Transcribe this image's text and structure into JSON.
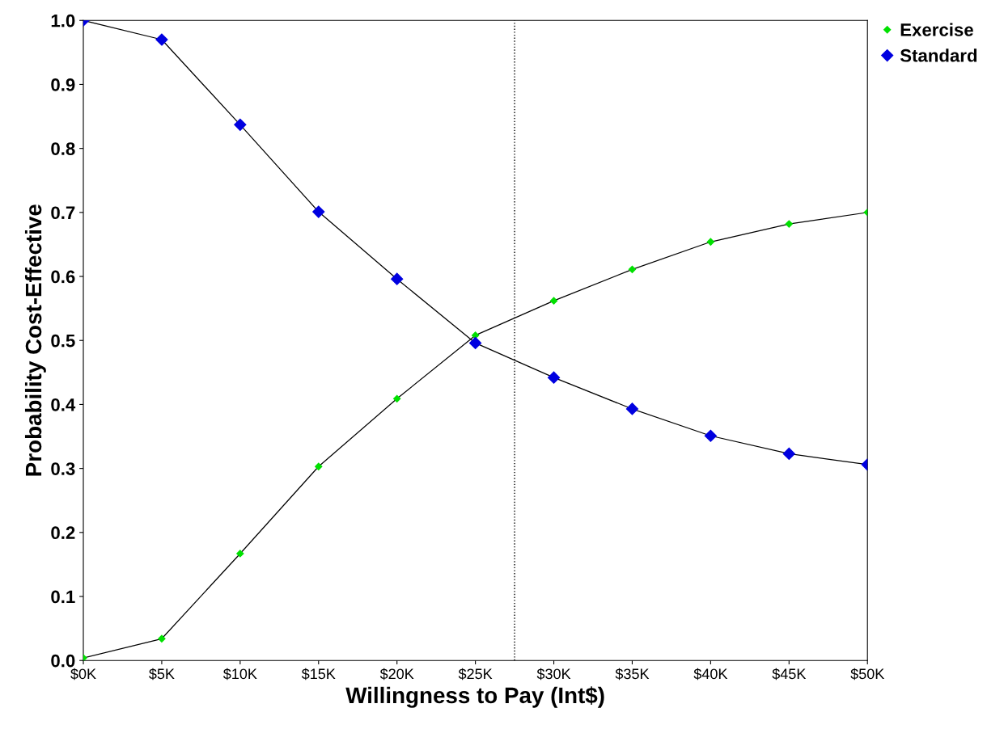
{
  "chart_data": {
    "type": "line",
    "xlabel": "Willingness to Pay (Int$)",
    "ylabel": "Probability Cost-Effective",
    "x": [
      0,
      5,
      10,
      15,
      20,
      25,
      30,
      35,
      40,
      45,
      50
    ],
    "series": [
      {
        "name": "Exercise",
        "color": "#00e000",
        "values": [
          0.004,
          0.034,
          0.167,
          0.303,
          0.409,
          0.508,
          0.562,
          0.611,
          0.654,
          0.682,
          0.7
        ]
      },
      {
        "name": "Standard",
        "color": "#0000e0",
        "values": [
          1.0,
          0.97,
          0.837,
          0.701,
          0.596,
          0.496,
          0.442,
          0.393,
          0.351,
          0.323,
          0.306
        ]
      }
    ],
    "xlim": [
      0,
      50
    ],
    "xticks": [
      {
        "value": 0,
        "label": "$0K"
      },
      {
        "value": 5,
        "label": "$5K"
      },
      {
        "value": 10,
        "label": "$10K"
      },
      {
        "value": 15,
        "label": "$15K"
      },
      {
        "value": 20,
        "label": "$20K"
      },
      {
        "value": 25,
        "label": "$25K"
      },
      {
        "value": 30,
        "label": "$30K"
      },
      {
        "value": 35,
        "label": "$35K"
      },
      {
        "value": 40,
        "label": "$40K"
      },
      {
        "value": 45,
        "label": "$45K"
      },
      {
        "value": 50,
        "label": "$50K"
      }
    ],
    "ylim": [
      0,
      1
    ],
    "yticks": [
      {
        "value": 0,
        "label": "0.0"
      },
      {
        "value": 0.1,
        "label": "0.1"
      },
      {
        "value": 0.2,
        "label": "0.2"
      },
      {
        "value": 0.3,
        "label": "0.3"
      },
      {
        "value": 0.4,
        "label": "0.4"
      },
      {
        "value": 0.5,
        "label": "0.5"
      },
      {
        "value": 0.6,
        "label": "0.6"
      },
      {
        "value": 0.7,
        "label": "0.7"
      },
      {
        "value": 0.8,
        "label": "0.8"
      },
      {
        "value": 0.9,
        "label": "0.9"
      },
      {
        "value": 1,
        "label": "1.0"
      }
    ],
    "ref_lines": [
      {
        "axis": "x",
        "value": 27.5,
        "line_style": "dotted",
        "color": "#000000"
      }
    ],
    "marker": "diamond",
    "line_style": "solid",
    "grid": false,
    "legend": "top right"
  }
}
